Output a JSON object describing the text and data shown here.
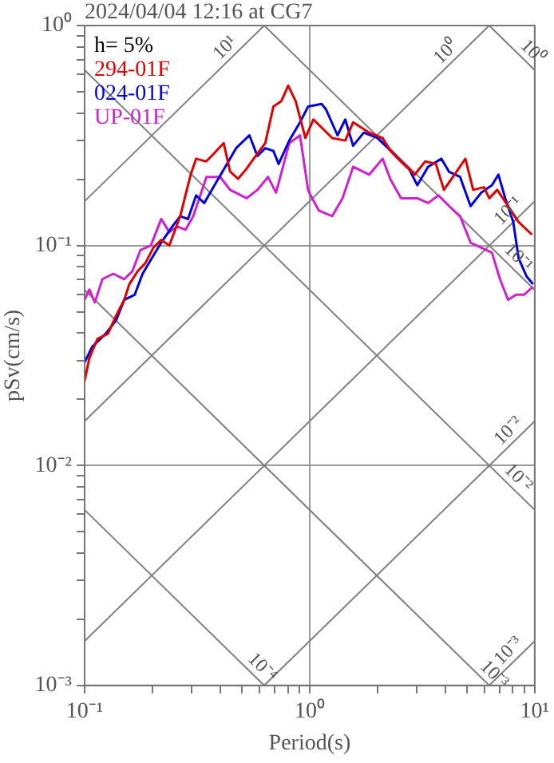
{
  "chart_data": {
    "type": "line",
    "title": "2024/04/04 12:16 at CG7",
    "xlabel": "Period(s)",
    "ylabel": "pSv(cm/s)",
    "log": "xy",
    "grid": true,
    "legend": "top left",
    "xlim": [
      0.1,
      10
    ],
    "ylim": [
      0.001,
      1
    ],
    "xticks": [
      {
        "value": 0.1,
        "label": "10⁻¹"
      },
      {
        "value": 0.2,
        "label": null
      },
      {
        "value": 0.3,
        "label": null
      },
      {
        "value": 0.4,
        "label": null
      },
      {
        "value": 0.5,
        "label": null
      },
      {
        "value": 0.6,
        "label": null
      },
      {
        "value": 0.7,
        "label": null
      },
      {
        "value": 0.8,
        "label": null
      },
      {
        "value": 0.9,
        "label": null
      },
      {
        "value": 1,
        "label": "10⁰"
      },
      {
        "value": 2,
        "label": null
      },
      {
        "value": 3,
        "label": null
      },
      {
        "value": 4,
        "label": null
      },
      {
        "value": 5,
        "label": null
      },
      {
        "value": 6,
        "label": null
      },
      {
        "value": 7,
        "label": null
      },
      {
        "value": 8,
        "label": null
      },
      {
        "value": 9,
        "label": null
      },
      {
        "value": 10,
        "label": "10¹"
      }
    ],
    "yticks": [
      {
        "value": 0.001,
        "label": "10⁻³"
      },
      {
        "value": 0.002,
        "label": null
      },
      {
        "value": 0.003,
        "label": null
      },
      {
        "value": 0.004,
        "label": null
      },
      {
        "value": 0.005,
        "label": null
      },
      {
        "value": 0.006,
        "label": null
      },
      {
        "value": 0.007,
        "label": null
      },
      {
        "value": 0.008,
        "label": null
      },
      {
        "value": 0.009,
        "label": null
      },
      {
        "value": 0.01,
        "label": "10⁻²"
      },
      {
        "value": 0.02,
        "label": null
      },
      {
        "value": 0.03,
        "label": null
      },
      {
        "value": 0.04,
        "label": null
      },
      {
        "value": 0.05,
        "label": null
      },
      {
        "value": 0.06,
        "label": null
      },
      {
        "value": 0.07,
        "label": null
      },
      {
        "value": 0.08,
        "label": null
      },
      {
        "value": 0.09,
        "label": null
      },
      {
        "value": 0.1,
        "label": "10⁻¹"
      },
      {
        "value": 0.2,
        "label": null
      },
      {
        "value": 0.3,
        "label": null
      },
      {
        "value": 0.4,
        "label": null
      },
      {
        "value": 0.5,
        "label": null
      },
      {
        "value": 0.6,
        "label": null
      },
      {
        "value": 0.7,
        "label": null
      },
      {
        "value": 0.8,
        "label": null
      },
      {
        "value": 0.9,
        "label": null
      },
      {
        "value": 1,
        "label": "10⁰"
      }
    ],
    "annotations": [
      "h= 5%",
      {
        "text": "10¹",
        "x": 0.458,
        "y": 0.729
      },
      {
        "text": "10⁰",
        "x": 4.38,
        "y": 0.697
      },
      {
        "text": "10⁰",
        "x": 9.0,
        "y": 0.698
      },
      {
        "text": "10⁻¹",
        "x": 8.3,
        "y": 0.132
      },
      {
        "text": "10⁻¹",
        "x": 7.78,
        "y": 0.0808
      },
      {
        "text": "10⁻²",
        "x": 8.3,
        "y": 0.0132
      },
      {
        "text": "10⁻²",
        "x": 7.78,
        "y": 0.00808
      },
      {
        "text": "10⁻⁴",
        "x": 0.567,
        "y": 0.00111
      },
      {
        "text": "10⁻³",
        "x": 6.08,
        "y": 0.00103
      },
      {
        "text": "10⁻³",
        "x": 8.3,
        "y": 0.00132
      }
    ],
    "series": [
      {
        "color": "#808080",
        "x": [
          0.1,
          0.628
        ],
        "values": [
          0.159,
          1
        ]
      },
      {
        "color": "#808080",
        "x": [
          0.1,
          6.28
        ],
        "values": [
          0.0159,
          1
        ]
      },
      {
        "color": "#808080",
        "x": [
          0.1,
          10
        ],
        "values": [
          0.00159,
          0.159
        ]
      },
      {
        "color": "#808080",
        "x": [
          0.628,
          10
        ],
        "values": [
          0.001,
          0.0159
        ]
      },
      {
        "color": "#808080",
        "x": [
          6.28,
          10
        ],
        "values": [
          0.001,
          0.00159
        ]
      },
      {
        "color": "#808080",
        "x": [
          0.1,
          0.628
        ],
        "values": [
          0.00628,
          0.001
        ]
      },
      {
        "color": "#808080",
        "x": [
          0.1,
          6.28
        ],
        "values": [
          0.0628,
          0.001
        ]
      },
      {
        "color": "#808080",
        "x": [
          0.1,
          10
        ],
        "values": [
          0.628,
          0.00628
        ]
      },
      {
        "color": "#808080",
        "x": [
          0.628,
          10
        ],
        "values": [
          1,
          0.0628
        ]
      },
      {
        "color": "#808080",
        "x": [
          6.28,
          10
        ],
        "values": [
          1,
          0.628
        ]
      },
      {
        "name": "294-01F",
        "color": "#e00000",
        "x": [
          0.1,
          0.105,
          0.114,
          0.127,
          0.138,
          0.15,
          0.158,
          0.172,
          0.186,
          0.202,
          0.219,
          0.238,
          0.266,
          0.296,
          0.313,
          0.347,
          0.376,
          0.415,
          0.443,
          0.481,
          0.522,
          0.586,
          0.635,
          0.69,
          0.748,
          0.803,
          0.867,
          0.957,
          1.04,
          1.26,
          1.44,
          1.56,
          1.84,
          2.11,
          2.29,
          2.55,
          2.93,
          3.26,
          3.64,
          3.95,
          4.4,
          4.92,
          5.33,
          5.95,
          6.28,
          6.82,
          7.62,
          8.48,
          9.72
        ],
        "values": [
          0.0242,
          0.0308,
          0.0376,
          0.0397,
          0.048,
          0.0566,
          0.0667,
          0.0764,
          0.083,
          0.0977,
          0.106,
          0.1,
          0.136,
          0.21,
          0.248,
          0.241,
          0.262,
          0.292,
          0.217,
          0.201,
          0.222,
          0.262,
          0.292,
          0.428,
          0.453,
          0.533,
          0.453,
          0.308,
          0.374,
          0.308,
          0.3,
          0.363,
          0.326,
          0.308,
          0.269,
          0.241,
          0.21,
          0.241,
          0.235,
          0.179,
          0.21,
          0.248,
          0.179,
          0.184,
          0.164,
          0.179,
          0.151,
          0.128,
          0.112
        ]
      },
      {
        "name": "024-01F",
        "color": "#0000e0",
        "x": [
          0.1,
          0.108,
          0.124,
          0.138,
          0.15,
          0.167,
          0.181,
          0.202,
          0.219,
          0.245,
          0.266,
          0.288,
          0.313,
          0.34,
          0.378,
          0.422,
          0.471,
          0.54,
          0.586,
          0.635,
          0.69,
          0.728,
          0.812,
          0.906,
          0.984,
          1.13,
          1.18,
          1.33,
          1.44,
          1.56,
          1.74,
          2.0,
          2.23,
          2.48,
          2.77,
          3.01,
          3.36,
          3.85,
          4.17,
          4.66,
          5.19,
          5.79,
          6.46,
          6.9,
          7.4,
          8.03,
          8.48,
          9.2,
          9.83
        ],
        "values": [
          0.0294,
          0.0346,
          0.0397,
          0.0457,
          0.0566,
          0.0597,
          0.0744,
          0.09,
          0.103,
          0.122,
          0.136,
          0.132,
          0.169,
          0.156,
          0.188,
          0.228,
          0.277,
          0.317,
          0.255,
          0.277,
          0.269,
          0.235,
          0.3,
          0.363,
          0.428,
          0.44,
          0.417,
          0.317,
          0.374,
          0.284,
          0.326,
          0.308,
          0.277,
          0.248,
          0.222,
          0.188,
          0.228,
          0.248,
          0.216,
          0.205,
          0.151,
          0.174,
          0.188,
          0.21,
          0.164,
          0.128,
          0.0877,
          0.0724,
          0.0667
        ]
      },
      {
        "name": "UP-01F",
        "color": "#d020d0",
        "x": [
          0.1,
          0.105,
          0.111,
          0.12,
          0.134,
          0.15,
          0.163,
          0.177,
          0.197,
          0.219,
          0.238,
          0.258,
          0.281,
          0.304,
          0.348,
          0.4,
          0.443,
          0.525,
          0.586,
          0.653,
          0.709,
          0.812,
          0.906,
          0.984,
          1.01,
          1.1,
          1.26,
          1.4,
          1.56,
          1.84,
          2.11,
          2.29,
          2.55,
          3.01,
          3.36,
          3.74,
          4.17,
          4.66,
          5.19,
          5.79,
          6.46,
          7.01,
          7.62,
          8.26,
          8.96,
          9.83
        ],
        "values": [
          0.0566,
          0.0631,
          0.0551,
          0.0703,
          0.0744,
          0.0703,
          0.0764,
          0.0952,
          0.1,
          0.132,
          0.115,
          0.122,
          0.118,
          0.136,
          0.205,
          0.205,
          0.179,
          0.164,
          0.179,
          0.205,
          0.174,
          0.292,
          0.317,
          0.179,
          0.169,
          0.144,
          0.136,
          0.164,
          0.228,
          0.21,
          0.248,
          0.199,
          0.164,
          0.164,
          0.156,
          0.169,
          0.151,
          0.136,
          0.103,
          0.0977,
          0.0927,
          0.0703,
          0.0566,
          0.0597,
          0.0597,
          0.0649
        ]
      }
    ]
  }
}
